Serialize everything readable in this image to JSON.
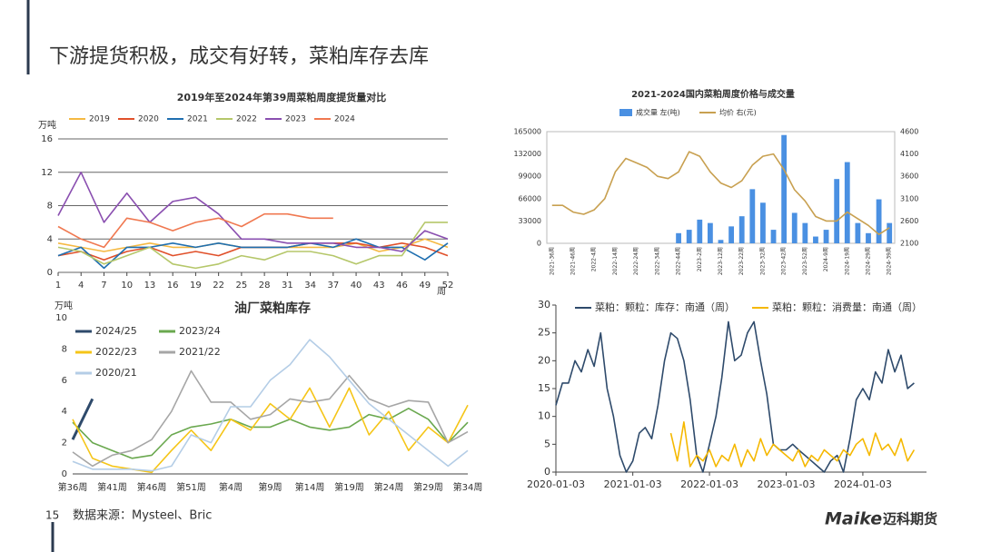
{
  "header": {
    "title": "下游提货积极，成交有好转，菜粕库存去库"
  },
  "footer": {
    "page_number": "15",
    "source": "数据来源：Mysteel、Bric",
    "logo_brand": "Maike",
    "logo_name": "迈科期货"
  },
  "chart_data": [
    {
      "type": "line",
      "title": "2019年至2024年第39周菜粕周度提货量对比",
      "y_unit": "万吨",
      "x_label": "周",
      "x": [
        1,
        4,
        7,
        10,
        13,
        16,
        19,
        22,
        25,
        28,
        31,
        34,
        37,
        40,
        43,
        46,
        49,
        52
      ],
      "xlim": [
        1,
        52
      ],
      "xticks": [
        1,
        4,
        7,
        10,
        13,
        16,
        19,
        22,
        25,
        28,
        31,
        34,
        37,
        40,
        43,
        46,
        49,
        52
      ],
      "ylim": [
        0,
        16
      ],
      "yticks": [
        0,
        4,
        8,
        12,
        16
      ],
      "grid": true,
      "series": [
        {
          "name": "2019",
          "color": "#f5b942",
          "values": [
            3.5,
            3,
            2.5,
            3,
            3.5,
            3,
            3,
            3.5,
            3,
            3,
            3,
            3,
            3,
            3.5,
            2.5,
            3,
            4,
            3
          ]
        },
        {
          "name": "2020",
          "color": "#e0502a",
          "values": [
            2,
            2.5,
            1.5,
            2.5,
            3,
            2,
            2.5,
            2,
            3,
            3,
            3,
            3.5,
            3.5,
            3.5,
            3,
            3.5,
            3,
            2
          ]
        },
        {
          "name": "2021",
          "color": "#1f6fb0",
          "values": [
            2,
            3,
            0.5,
            3,
            3,
            3.5,
            3,
            3.5,
            3,
            3,
            3,
            3.5,
            3,
            4,
            3,
            3,
            1.5,
            3.5
          ]
        },
        {
          "name": "2022",
          "color": "#b5c76a",
          "values": [
            3,
            2.5,
            1,
            2,
            3,
            1,
            0.5,
            1,
            2,
            1.5,
            2.5,
            2.5,
            2,
            1,
            2,
            2,
            6,
            6
          ]
        },
        {
          "name": "2023",
          "color": "#8a4fb0",
          "values": [
            6.8,
            12,
            6,
            9.5,
            6,
            8.5,
            9,
            7,
            4,
            4,
            3.5,
            3.5,
            3.5,
            3,
            3,
            2.5,
            5,
            4
          ]
        },
        {
          "name": "2024",
          "color": "#f07850",
          "values": [
            5.5,
            4,
            3,
            6.5,
            6,
            5,
            6,
            6.5,
            5.5,
            7,
            7,
            6.5,
            6.5,
            null,
            null,
            null,
            null,
            null
          ]
        }
      ]
    },
    {
      "type": "combo",
      "title": "2021-2024国内菜粕周度价格与成交量",
      "categories": [
        "2021-36周",
        null,
        "2021-46周",
        null,
        "2022-4周",
        null,
        "2022-14周",
        null,
        "2022-24周",
        null,
        "2022-34周",
        null,
        "2022-44周",
        null,
        "2023-2周",
        null,
        "2023-12周",
        null,
        "2023-22周",
        null,
        "2023-32周",
        null,
        "2023-42周",
        null,
        "2023-52周",
        null,
        "2024-9周",
        null,
        "2024-19周",
        null,
        "2024-29周",
        null,
        "2024-39周"
      ],
      "ylim": [
        0,
        165000
      ],
      "yticks": [
        0,
        33000,
        66000,
        99000,
        132000,
        165000
      ],
      "y2lim": [
        2100,
        4600
      ],
      "y2ticks": [
        2100,
        2600,
        3100,
        3600,
        4100,
        4600
      ],
      "series": [
        {
          "name": "成交量 左(吨)",
          "type": "bar",
          "color": "#4a90e2",
          "values": [
            0,
            0,
            0,
            0,
            0,
            0,
            0,
            0,
            0,
            0,
            0,
            0,
            15000,
            20000,
            35000,
            30000,
            5000,
            25000,
            40000,
            80000,
            60000,
            20000,
            160000,
            45000,
            30000,
            10000,
            20000,
            95000,
            120000,
            30000,
            15000,
            65000,
            30000
          ]
        },
        {
          "name": "均价 右(元)",
          "type": "line",
          "axis": "y2",
          "color": "#c8a050",
          "values": [
            2950,
            2950,
            2800,
            2750,
            2850,
            3100,
            3700,
            4000,
            3900,
            3800,
            3600,
            3550,
            3700,
            4150,
            4050,
            3700,
            3450,
            3350,
            3500,
            3850,
            4050,
            4100,
            3750,
            3300,
            3050,
            2700,
            2600,
            2600,
            2800,
            2650,
            2500,
            2300,
            2450
          ]
        }
      ]
    },
    {
      "type": "line",
      "title": "油厂菜粕库存",
      "y_unit": "万吨",
      "categories": [
        "第36周",
        null,
        "第41周",
        null,
        "第46周",
        null,
        "第51周",
        null,
        "第4周",
        null,
        "第9周",
        null,
        "第14周",
        null,
        "第19周",
        null,
        "第24周",
        null,
        "第29周",
        null,
        "第34周"
      ],
      "ylim": [
        0,
        10
      ],
      "yticks": [
        0,
        2,
        4,
        6,
        8,
        10
      ],
      "series": [
        {
          "name": "2024/25",
          "color": "#2e4a6b",
          "values": [
            2.2,
            4.8,
            null,
            null,
            null,
            null,
            null,
            null,
            null,
            null,
            null,
            null,
            null,
            null,
            null,
            null,
            null,
            null,
            null,
            null,
            null
          ]
        },
        {
          "name": "2023/24",
          "color": "#6aa84f",
          "values": [
            3.3,
            2.0,
            1.5,
            1.0,
            1.2,
            2.5,
            3.0,
            3.2,
            3.5,
            3.0,
            3.0,
            3.5,
            3.0,
            2.8,
            3.0,
            3.8,
            3.5,
            4.2,
            3.5,
            2.0,
            3.3
          ]
        },
        {
          "name": "2022/23",
          "color": "#f5c518",
          "values": [
            3.5,
            1.0,
            0.5,
            0.3,
            0.1,
            1.5,
            2.8,
            1.5,
            3.5,
            2.8,
            4.5,
            3.5,
            5.5,
            3.0,
            5.5,
            2.5,
            4.0,
            1.5,
            3.0,
            2.0,
            4.4
          ]
        },
        {
          "name": "2021/22",
          "color": "#a6a6a6",
          "values": [
            1.4,
            0.5,
            1.2,
            1.5,
            2.2,
            4.0,
            6.6,
            4.6,
            4.6,
            3.5,
            3.8,
            4.8,
            4.6,
            4.8,
            6.3,
            4.8,
            4.3,
            4.7,
            4.6,
            2.0,
            2.7
          ]
        },
        {
          "name": "2020/21",
          "color": "#b4cde6",
          "values": [
            0.8,
            0.3,
            0.3,
            0.3,
            0.2,
            0.5,
            2.5,
            2.0,
            4.3,
            4.3,
            6.0,
            7.0,
            8.6,
            7.5,
            6.0,
            4.5,
            3.5,
            2.5,
            1.5,
            0.5,
            1.5
          ]
        }
      ]
    },
    {
      "type": "line",
      "x": [
        "2020-01-03",
        "2020-02-03",
        "2020-03-03",
        "2020-04-03",
        "2020-05-03",
        "2020-06-03",
        "2020-07-03",
        "2020-08-03",
        "2020-09-03",
        "2020-10-03",
        "2020-11-03",
        "2020-12-03",
        "2021-01-03",
        "2021-02-03",
        "2021-03-03",
        "2021-04-03",
        "2021-05-03",
        "2021-06-03",
        "2021-07-03",
        "2021-08-03",
        "2021-09-03",
        "2021-10-03",
        "2021-11-03",
        "2021-12-03",
        "2022-01-03",
        "2022-02-03",
        "2022-03-03",
        "2022-04-03",
        "2022-05-03",
        "2022-06-03",
        "2022-07-03",
        "2022-08-03",
        "2022-09-03",
        "2022-10-03",
        "2022-11-03",
        "2022-12-03",
        "2023-01-03",
        "2023-02-03",
        "2023-03-03",
        "2023-04-03",
        "2023-05-03",
        "2023-06-03",
        "2023-07-03",
        "2023-08-03",
        "2023-09-03",
        "2023-10-03",
        "2023-11-03",
        "2023-12-03",
        "2024-01-03",
        "2024-02-03",
        "2024-03-03",
        "2024-04-03",
        "2024-05-03",
        "2024-06-03",
        "2024-07-03",
        "2024-08-03",
        "2024-09-03"
      ],
      "xlim": [
        "2020-01-03",
        "2024-11-01"
      ],
      "xticks": [
        "2020-01-03",
        "2021-01-03",
        "2022-01-03",
        "2023-01-03",
        "2024-01-03"
      ],
      "ylim": [
        0,
        30
      ],
      "yticks": [
        0,
        5,
        10,
        15,
        20,
        25,
        30
      ],
      "series": [
        {
          "name": "菜粕：颗粒：库存：南通（周）",
          "color": "#2e4a6b",
          "values": [
            12,
            16,
            16,
            20,
            18,
            22,
            19,
            25,
            15,
            10,
            3,
            0,
            2,
            7,
            8,
            6,
            12,
            20,
            25,
            24,
            20,
            13,
            3,
            0,
            5,
            10,
            17,
            27,
            20,
            21,
            25,
            27,
            20,
            14,
            5,
            4,
            4,
            5,
            4,
            3,
            2,
            1,
            0,
            2,
            3,
            0,
            6,
            13,
            15,
            13,
            18,
            16,
            22,
            18,
            21,
            15,
            16
          ]
        },
        {
          "name": "菜粕：颗粒：消费量：南通（周）",
          "color": "#f5b800",
          "values": [
            null,
            null,
            null,
            null,
            null,
            null,
            null,
            null,
            null,
            null,
            null,
            null,
            null,
            null,
            null,
            null,
            null,
            null,
            7,
            2,
            9,
            1,
            3,
            2,
            4,
            1,
            3,
            2,
            5,
            1,
            4,
            2,
            6,
            3,
            5,
            4,
            3,
            2,
            4,
            1,
            3,
            2,
            4,
            3,
            2,
            4,
            3,
            5,
            6,
            3,
            7,
            4,
            5,
            3,
            6,
            2,
            4
          ]
        }
      ]
    }
  ]
}
